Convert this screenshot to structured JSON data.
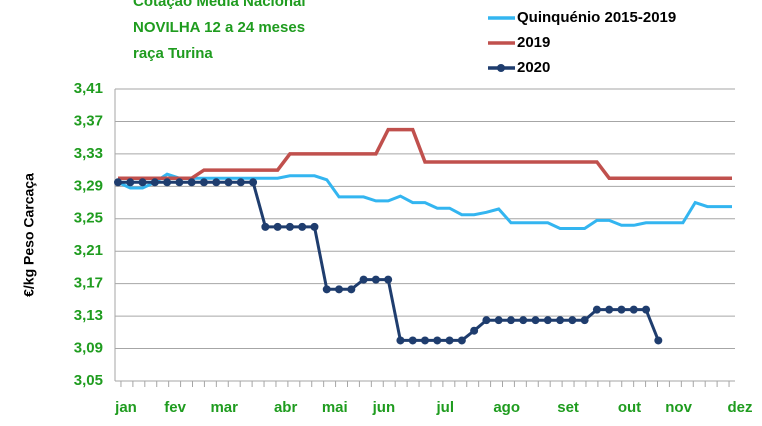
{
  "chart_data": {
    "type": "line",
    "title": [
      "Cotação Média Nacional",
      "NOVILHA 12 a 24 meses",
      "raça Turina"
    ],
    "ylabel": "€/kg Peso Carcaça",
    "categories": [
      "jan",
      null,
      null,
      null,
      "fev",
      null,
      null,
      null,
      "mar",
      null,
      null,
      null,
      null,
      "abr",
      null,
      null,
      null,
      "mai",
      null,
      null,
      null,
      "jun",
      null,
      null,
      null,
      null,
      "jul",
      null,
      null,
      null,
      null,
      "ago",
      null,
      null,
      null,
      null,
      "set",
      null,
      null,
      null,
      null,
      "out",
      null,
      null,
      null,
      "nov",
      null,
      null,
      null,
      null,
      "dez",
      null
    ],
    "series": [
      {
        "name": "Quinquénio 2015-2019",
        "color": "#33b5f0",
        "marker": false,
        "values": [
          3.295,
          3.288,
          3.288,
          3.295,
          3.305,
          3.3,
          3.3,
          3.3,
          3.3,
          3.3,
          3.3,
          3.3,
          3.3,
          3.3,
          3.303,
          3.303,
          3.303,
          3.298,
          3.277,
          3.277,
          3.277,
          3.272,
          3.272,
          3.278,
          3.27,
          3.27,
          3.263,
          3.263,
          3.255,
          3.255,
          3.258,
          3.262,
          3.245,
          3.245,
          3.245,
          3.245,
          3.238,
          3.238,
          3.238,
          3.248,
          3.248,
          3.242,
          3.242,
          3.245,
          3.245,
          3.245,
          3.245,
          3.27,
          3.265,
          3.265,
          3.265,
          null
        ]
      },
      {
        "name": "2019",
        "color": "#c0504d",
        "marker": false,
        "values": [
          3.3,
          3.3,
          3.3,
          3.3,
          3.3,
          3.3,
          3.3,
          3.31,
          3.31,
          3.31,
          3.31,
          3.31,
          3.31,
          3.31,
          3.33,
          3.33,
          3.33,
          3.33,
          3.33,
          3.33,
          3.33,
          3.33,
          3.36,
          3.36,
          3.36,
          3.32,
          3.32,
          3.32,
          3.32,
          3.32,
          3.32,
          3.32,
          3.32,
          3.32,
          3.32,
          3.32,
          3.32,
          3.32,
          3.32,
          3.32,
          3.3,
          3.3,
          3.3,
          3.3,
          3.3,
          3.3,
          3.3,
          3.3,
          3.3,
          3.3,
          3.3,
          null
        ]
      },
      {
        "name": "2020",
        "color": "#1f3d6e",
        "marker": true,
        "values": [
          3.295,
          3.295,
          3.295,
          3.295,
          3.295,
          3.295,
          3.295,
          3.295,
          3.295,
          3.295,
          3.295,
          3.295,
          3.24,
          3.24,
          3.24,
          3.24,
          3.24,
          3.163,
          3.163,
          3.163,
          3.175,
          3.175,
          3.175,
          3.1,
          3.1,
          3.1,
          3.1,
          3.1,
          3.1,
          3.112,
          3.125,
          3.125,
          3.125,
          3.125,
          3.125,
          3.125,
          3.125,
          3.125,
          3.125,
          3.138,
          3.138,
          3.138,
          3.138,
          3.138,
          3.1,
          null,
          null,
          null,
          null,
          null,
          null,
          null
        ]
      }
    ],
    "ylim": [
      3.05,
      3.41
    ],
    "yticks": [
      {
        "value": 3.05,
        "label": "3,05"
      },
      {
        "value": 3.09,
        "label": "3,09"
      },
      {
        "value": 3.13,
        "label": "3,13"
      },
      {
        "value": 3.17,
        "label": "3,17"
      },
      {
        "value": 3.21,
        "label": "3,21"
      },
      {
        "value": 3.25,
        "label": "3,25"
      },
      {
        "value": 3.29,
        "label": "3,29"
      },
      {
        "value": 3.33,
        "label": "3,33"
      },
      {
        "value": 3.37,
        "label": "3,37"
      },
      {
        "value": 3.41,
        "label": "3,41"
      }
    ],
    "grid": true,
    "legend": "top-right",
    "text_color": "#1f9c1f"
  }
}
